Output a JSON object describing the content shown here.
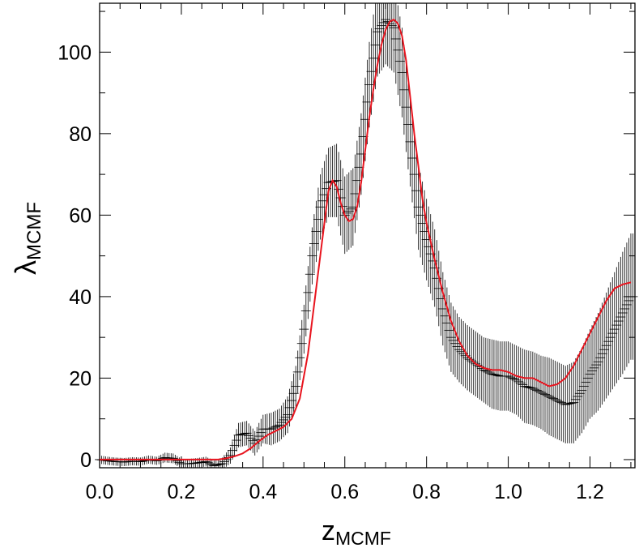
{
  "chart_data": {
    "type": "line",
    "xlabel": {
      "main": "z",
      "sub": "MCMF"
    },
    "ylabel": {
      "main": "λ",
      "sub": "MCMF"
    },
    "xlim": [
      0.0,
      1.31
    ],
    "ylim": [
      -2,
      112
    ],
    "xticks": [
      0.0,
      0.2,
      0.4,
      0.6,
      0.8,
      1.0,
      1.2
    ],
    "xtick_labels": [
      "0.0",
      "0.2",
      "0.4",
      "0.6",
      "0.8",
      "1.0",
      "1.2"
    ],
    "yticks": [
      0,
      20,
      40,
      60,
      80,
      100
    ],
    "ytick_labels": [
      "0",
      "20",
      "40",
      "60",
      "80",
      "100"
    ],
    "grid": false,
    "colors": {
      "fit_line": "#e8141e",
      "data": "#000000"
    },
    "series": [
      {
        "kind": "errorbar",
        "x": [
          0.0,
          0.02,
          0.04,
          0.06,
          0.08,
          0.1,
          0.12,
          0.14,
          0.16,
          0.18,
          0.2,
          0.22,
          0.24,
          0.26,
          0.28,
          0.3,
          0.32,
          0.34,
          0.36,
          0.38,
          0.4,
          0.42,
          0.44,
          0.46,
          0.48,
          0.5,
          0.52,
          0.54,
          0.56,
          0.58,
          0.6,
          0.62,
          0.64,
          0.66,
          0.68,
          0.7,
          0.72,
          0.74,
          0.76,
          0.78,
          0.8,
          0.82,
          0.84,
          0.86,
          0.88,
          0.9,
          0.92,
          0.94,
          0.96,
          0.98,
          1.0,
          1.02,
          1.04,
          1.06,
          1.08,
          1.1,
          1.12,
          1.14,
          1.16,
          1.18,
          1.2,
          1.22,
          1.24,
          1.26,
          1.28,
          1.3
        ],
        "y": [
          0.0,
          -0.3,
          -0.5,
          -0.6,
          -0.4,
          -0.5,
          0.0,
          -0.3,
          0.5,
          0.3,
          -1.0,
          -1.0,
          -0.8,
          -0.5,
          -1.5,
          -1.0,
          1.0,
          6.0,
          6.5,
          4.0,
          7.5,
          7.5,
          8.5,
          11.0,
          18.0,
          32.0,
          50.0,
          62.0,
          68.0,
          68.5,
          60.0,
          62.0,
          75.0,
          92.0,
          105.0,
          108.0,
          106.0,
          95.0,
          78.0,
          62.0,
          54.0,
          47.0,
          37.0,
          30.0,
          27.0,
          25.0,
          23.5,
          22.0,
          21.0,
          20.5,
          20.5,
          19.5,
          18.0,
          17.5,
          16.5,
          15.5,
          14.5,
          13.5,
          14.0,
          17.0,
          21.0,
          24.0,
          28.0,
          32.0,
          36.0,
          40.0
        ],
        "err": [
          1.0,
          1.0,
          1.0,
          1.0,
          1.0,
          1.0,
          1.0,
          1.0,
          1.2,
          1.2,
          1.2,
          1.2,
          1.2,
          1.2,
          1.3,
          1.5,
          2.0,
          3.0,
          3.0,
          3.0,
          3.5,
          4.0,
          4.0,
          4.5,
          5.0,
          6.0,
          7.0,
          8.0,
          8.5,
          9.0,
          9.5,
          9.5,
          10.0,
          10.5,
          11.0,
          11.0,
          11.0,
          11.0,
          11.0,
          10.5,
          10.0,
          9.5,
          9.0,
          8.5,
          8.0,
          8.0,
          8.0,
          8.0,
          8.5,
          8.5,
          8.5,
          8.5,
          9.0,
          9.0,
          9.0,
          9.5,
          9.5,
          9.5,
          10.0,
          10.5,
          11.0,
          12.0,
          13.0,
          14.0,
          15.0,
          15.5
        ]
      },
      {
        "kind": "line",
        "x": [
          0.0,
          0.05,
          0.1,
          0.15,
          0.2,
          0.25,
          0.29,
          0.31,
          0.33,
          0.35,
          0.37,
          0.39,
          0.41,
          0.43,
          0.45,
          0.47,
          0.49,
          0.51,
          0.53,
          0.55,
          0.56,
          0.57,
          0.58,
          0.59,
          0.6,
          0.61,
          0.62,
          0.63,
          0.64,
          0.65,
          0.66,
          0.67,
          0.68,
          0.69,
          0.7,
          0.71,
          0.72,
          0.73,
          0.74,
          0.75,
          0.76,
          0.77,
          0.78,
          0.79,
          0.8,
          0.82,
          0.84,
          0.86,
          0.88,
          0.9,
          0.92,
          0.94,
          0.96,
          0.98,
          1.0,
          1.02,
          1.04,
          1.06,
          1.08,
          1.1,
          1.12,
          1.14,
          1.16,
          1.18,
          1.2,
          1.22,
          1.24,
          1.26,
          1.28,
          1.3
        ],
        "y": [
          0.0,
          0.0,
          0.0,
          0.0,
          0.0,
          0.0,
          0.0,
          0.3,
          0.8,
          1.5,
          2.8,
          4.5,
          6.0,
          7.0,
          8.0,
          10.0,
          15.0,
          26.0,
          42.0,
          58.0,
          66.0,
          68.5,
          67.0,
          63.0,
          60.0,
          58.5,
          59.0,
          62.0,
          68.0,
          76.0,
          84.0,
          91.0,
          97.0,
          102.0,
          105.5,
          107.5,
          108.0,
          107.0,
          104.0,
          98.0,
          89.0,
          80.0,
          72.0,
          64.0,
          58.0,
          49.0,
          41.0,
          34.0,
          29.0,
          25.5,
          23.5,
          22.5,
          22.0,
          22.0,
          21.5,
          20.5,
          20.0,
          20.0,
          19.0,
          18.0,
          18.5,
          20.0,
          23.0,
          27.0,
          31.0,
          35.0,
          39.0,
          42.0,
          43.0,
          43.5
        ]
      }
    ]
  }
}
